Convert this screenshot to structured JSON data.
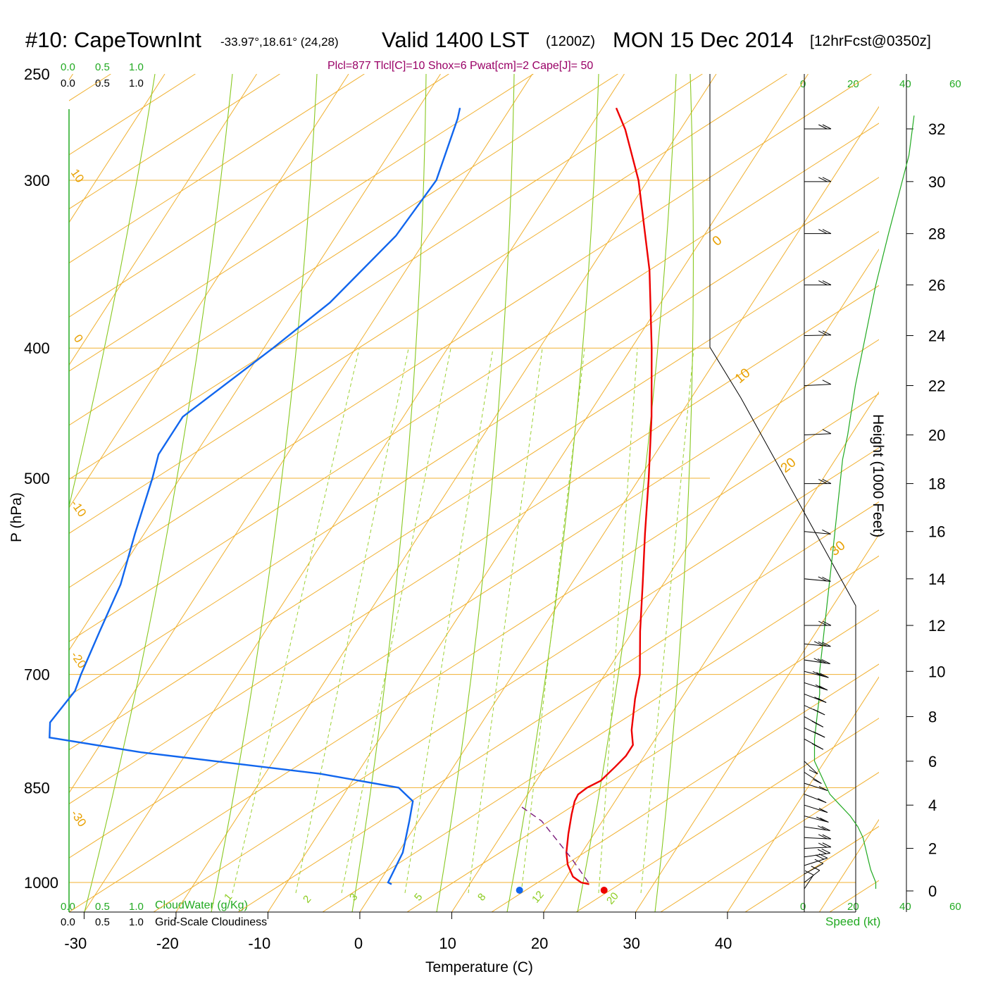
{
  "header": {
    "station": "#10: CapeTownInt",
    "coords": "-33.97°,18.61° (24,28)",
    "valid": "Valid 1400 LST",
    "zulu": "(1200Z)",
    "date": "MON 15 Dec 2014",
    "forecast": "[12hrFcst@0350z]",
    "indices": "Plcl=877 Tlcl[C]=10 Shox=6 Pwat[cm]=2 Cape[J]= 50"
  },
  "scales": {
    "cloudwater_ticks": [
      "0.0",
      "0.5",
      "1.0"
    ],
    "cloudiness_ticks": [
      "0.0",
      "0.5",
      "1.0"
    ],
    "cloudwater_label": "CloudWater (g/Kg)",
    "cloudiness_label": "Grid-Scale Cloudiness",
    "speed_ticks": [
      "0",
      "20",
      "40",
      "60"
    ],
    "speed_label": "Speed (kt)"
  },
  "chart_data": {
    "type": "line",
    "title": "#10: CapeTownInt",
    "xlabel": "Temperature (C)",
    "ylabel": "P (hPa)",
    "y2label": "Height (1000 Feet)",
    "x_ticks": [
      "-30",
      "-20",
      "-10",
      "0",
      "10",
      "20",
      "30",
      "40"
    ],
    "p_ticks": [
      "250",
      "300",
      "400",
      "500",
      "700",
      "850",
      "1000"
    ],
    "height_ticks": [
      "0",
      "2",
      "4",
      "6",
      "8",
      "10",
      "12",
      "14",
      "16",
      "18",
      "20",
      "22",
      "24",
      "26",
      "28",
      "30",
      "32"
    ],
    "isotherm_labels": [
      "10",
      "0",
      "-10",
      "-20",
      "-30"
    ],
    "saturation_labels": [
      "0",
      "10",
      "20",
      "30"
    ],
    "mixing_ratio_labels": [
      "1",
      "2",
      "3",
      "5",
      "8",
      "12",
      "20"
    ],
    "series": [
      {
        "name": "Temperature",
        "color": "#ee0000",
        "points": [
          [
            1003,
            23.0
          ],
          [
            1000,
            22.0
          ],
          [
            990,
            20.7
          ],
          [
            970,
            19.3
          ],
          [
            950,
            18.3
          ],
          [
            920,
            17.2
          ],
          [
            890,
            16.2
          ],
          [
            870,
            15.6
          ],
          [
            860,
            15.5
          ],
          [
            850,
            16.0
          ],
          [
            840,
            17.0
          ],
          [
            820,
            17.6
          ],
          [
            805,
            18.0
          ],
          [
            790,
            18.0
          ],
          [
            770,
            16.8
          ],
          [
            730,
            15.0
          ],
          [
            700,
            13.8
          ],
          [
            650,
            10.8
          ],
          [
            600,
            7.8
          ],
          [
            550,
            4.5
          ],
          [
            500,
            1.0
          ],
          [
            450,
            -3.0
          ],
          [
            400,
            -7.8
          ],
          [
            350,
            -13.5
          ],
          [
            300,
            -21.0
          ],
          [
            275,
            -26.0
          ],
          [
            265,
            -28.5
          ]
        ]
      },
      {
        "name": "Dewpoint",
        "color": "#1166ee",
        "points": [
          [
            1003,
            1.5
          ],
          [
            1000,
            1.0
          ],
          [
            950,
            0.5
          ],
          [
            900,
            -1.0
          ],
          [
            870,
            -2.0
          ],
          [
            850,
            -4.5
          ],
          [
            830,
            -14.0
          ],
          [
            800,
            -35.0
          ],
          [
            780,
            -46.0
          ],
          [
            760,
            -47.0
          ],
          [
            720,
            -46.5
          ],
          [
            700,
            -47.0
          ],
          [
            650,
            -48.0
          ],
          [
            600,
            -49.0
          ],
          [
            550,
            -51.0
          ],
          [
            500,
            -53.0
          ],
          [
            480,
            -54.0
          ],
          [
            450,
            -54.0
          ],
          [
            400,
            -49.0
          ],
          [
            370,
            -46.0
          ],
          [
            330,
            -43.5
          ],
          [
            300,
            -43.0
          ],
          [
            270,
            -45.0
          ],
          [
            265,
            -45.5
          ]
        ]
      },
      {
        "name": "Parcel",
        "color": "#7a1a7a",
        "points": [
          [
            1000,
            22.8
          ],
          [
            960,
            19.3
          ],
          [
            930,
            16.4
          ],
          [
            900,
            13.4
          ],
          [
            877,
            10.0
          ]
        ]
      }
    ],
    "surface_temperature": 24.5,
    "surface_dewpoint": 15.3,
    "wind_profile_kt": [
      [
        0.1,
        28
      ],
      [
        0.4,
        28
      ],
      [
        1.0,
        26
      ],
      [
        1.5,
        25
      ],
      [
        2.0,
        24
      ],
      [
        2.5,
        23
      ],
      [
        3.0,
        21
      ],
      [
        3.5,
        18
      ],
      [
        4.0,
        14
      ],
      [
        4.5,
        10
      ],
      [
        5.0,
        8
      ],
      [
        5.5,
        6
      ],
      [
        6.0,
        4
      ],
      [
        7.0,
        4
      ],
      [
        8.0,
        5
      ],
      [
        9.0,
        6
      ],
      [
        10.0,
        6
      ],
      [
        11.0,
        7
      ],
      [
        12.0,
        8
      ],
      [
        13.0,
        9
      ],
      [
        14.0,
        10
      ],
      [
        15.0,
        11
      ],
      [
        16.0,
        12
      ],
      [
        17.0,
        13
      ],
      [
        18.0,
        14
      ],
      [
        19.0,
        15
      ],
      [
        20.0,
        17
      ],
      [
        22.0,
        20
      ],
      [
        24.0,
        24
      ],
      [
        26.0,
        28
      ],
      [
        28.0,
        33
      ],
      [
        29.5,
        37
      ],
      [
        31.0,
        41
      ],
      [
        32.5,
        43
      ]
    ],
    "wind_barbs": [
      [
        0.1,
        200,
        14
      ],
      [
        0.4,
        215,
        14
      ],
      [
        0.8,
        225,
        14
      ],
      [
        1.2,
        240,
        15
      ],
      [
        1.6,
        255,
        16
      ],
      [
        2.0,
        265,
        17
      ],
      [
        2.5,
        275,
        17
      ],
      [
        3.0,
        285,
        16
      ],
      [
        3.5,
        295,
        15
      ],
      [
        4.0,
        300,
        13
      ],
      [
        4.5,
        305,
        12
      ],
      [
        5.0,
        300,
        10
      ],
      [
        5.5,
        320,
        8
      ],
      [
        6.0,
        330,
        10
      ],
      [
        7.0,
        315,
        15
      ],
      [
        7.5,
        310,
        18
      ],
      [
        8.0,
        315,
        18
      ],
      [
        8.5,
        310,
        20
      ],
      [
        9.0,
        305,
        22
      ],
      [
        9.5,
        300,
        23
      ],
      [
        10.0,
        295,
        25
      ],
      [
        10.5,
        285,
        25
      ],
      [
        11.2,
        280,
        25
      ],
      [
        12.0,
        270,
        23
      ],
      [
        14.0,
        280,
        20
      ],
      [
        16.0,
        280,
        12
      ],
      [
        18.0,
        270,
        15
      ],
      [
        20.0,
        265,
        12
      ],
      [
        22.0,
        265,
        12
      ],
      [
        24.0,
        268,
        15
      ],
      [
        26.0,
        270,
        20
      ],
      [
        28.0,
        270,
        15
      ],
      [
        30.0,
        270,
        15
      ],
      [
        32.0,
        270,
        15
      ]
    ]
  }
}
